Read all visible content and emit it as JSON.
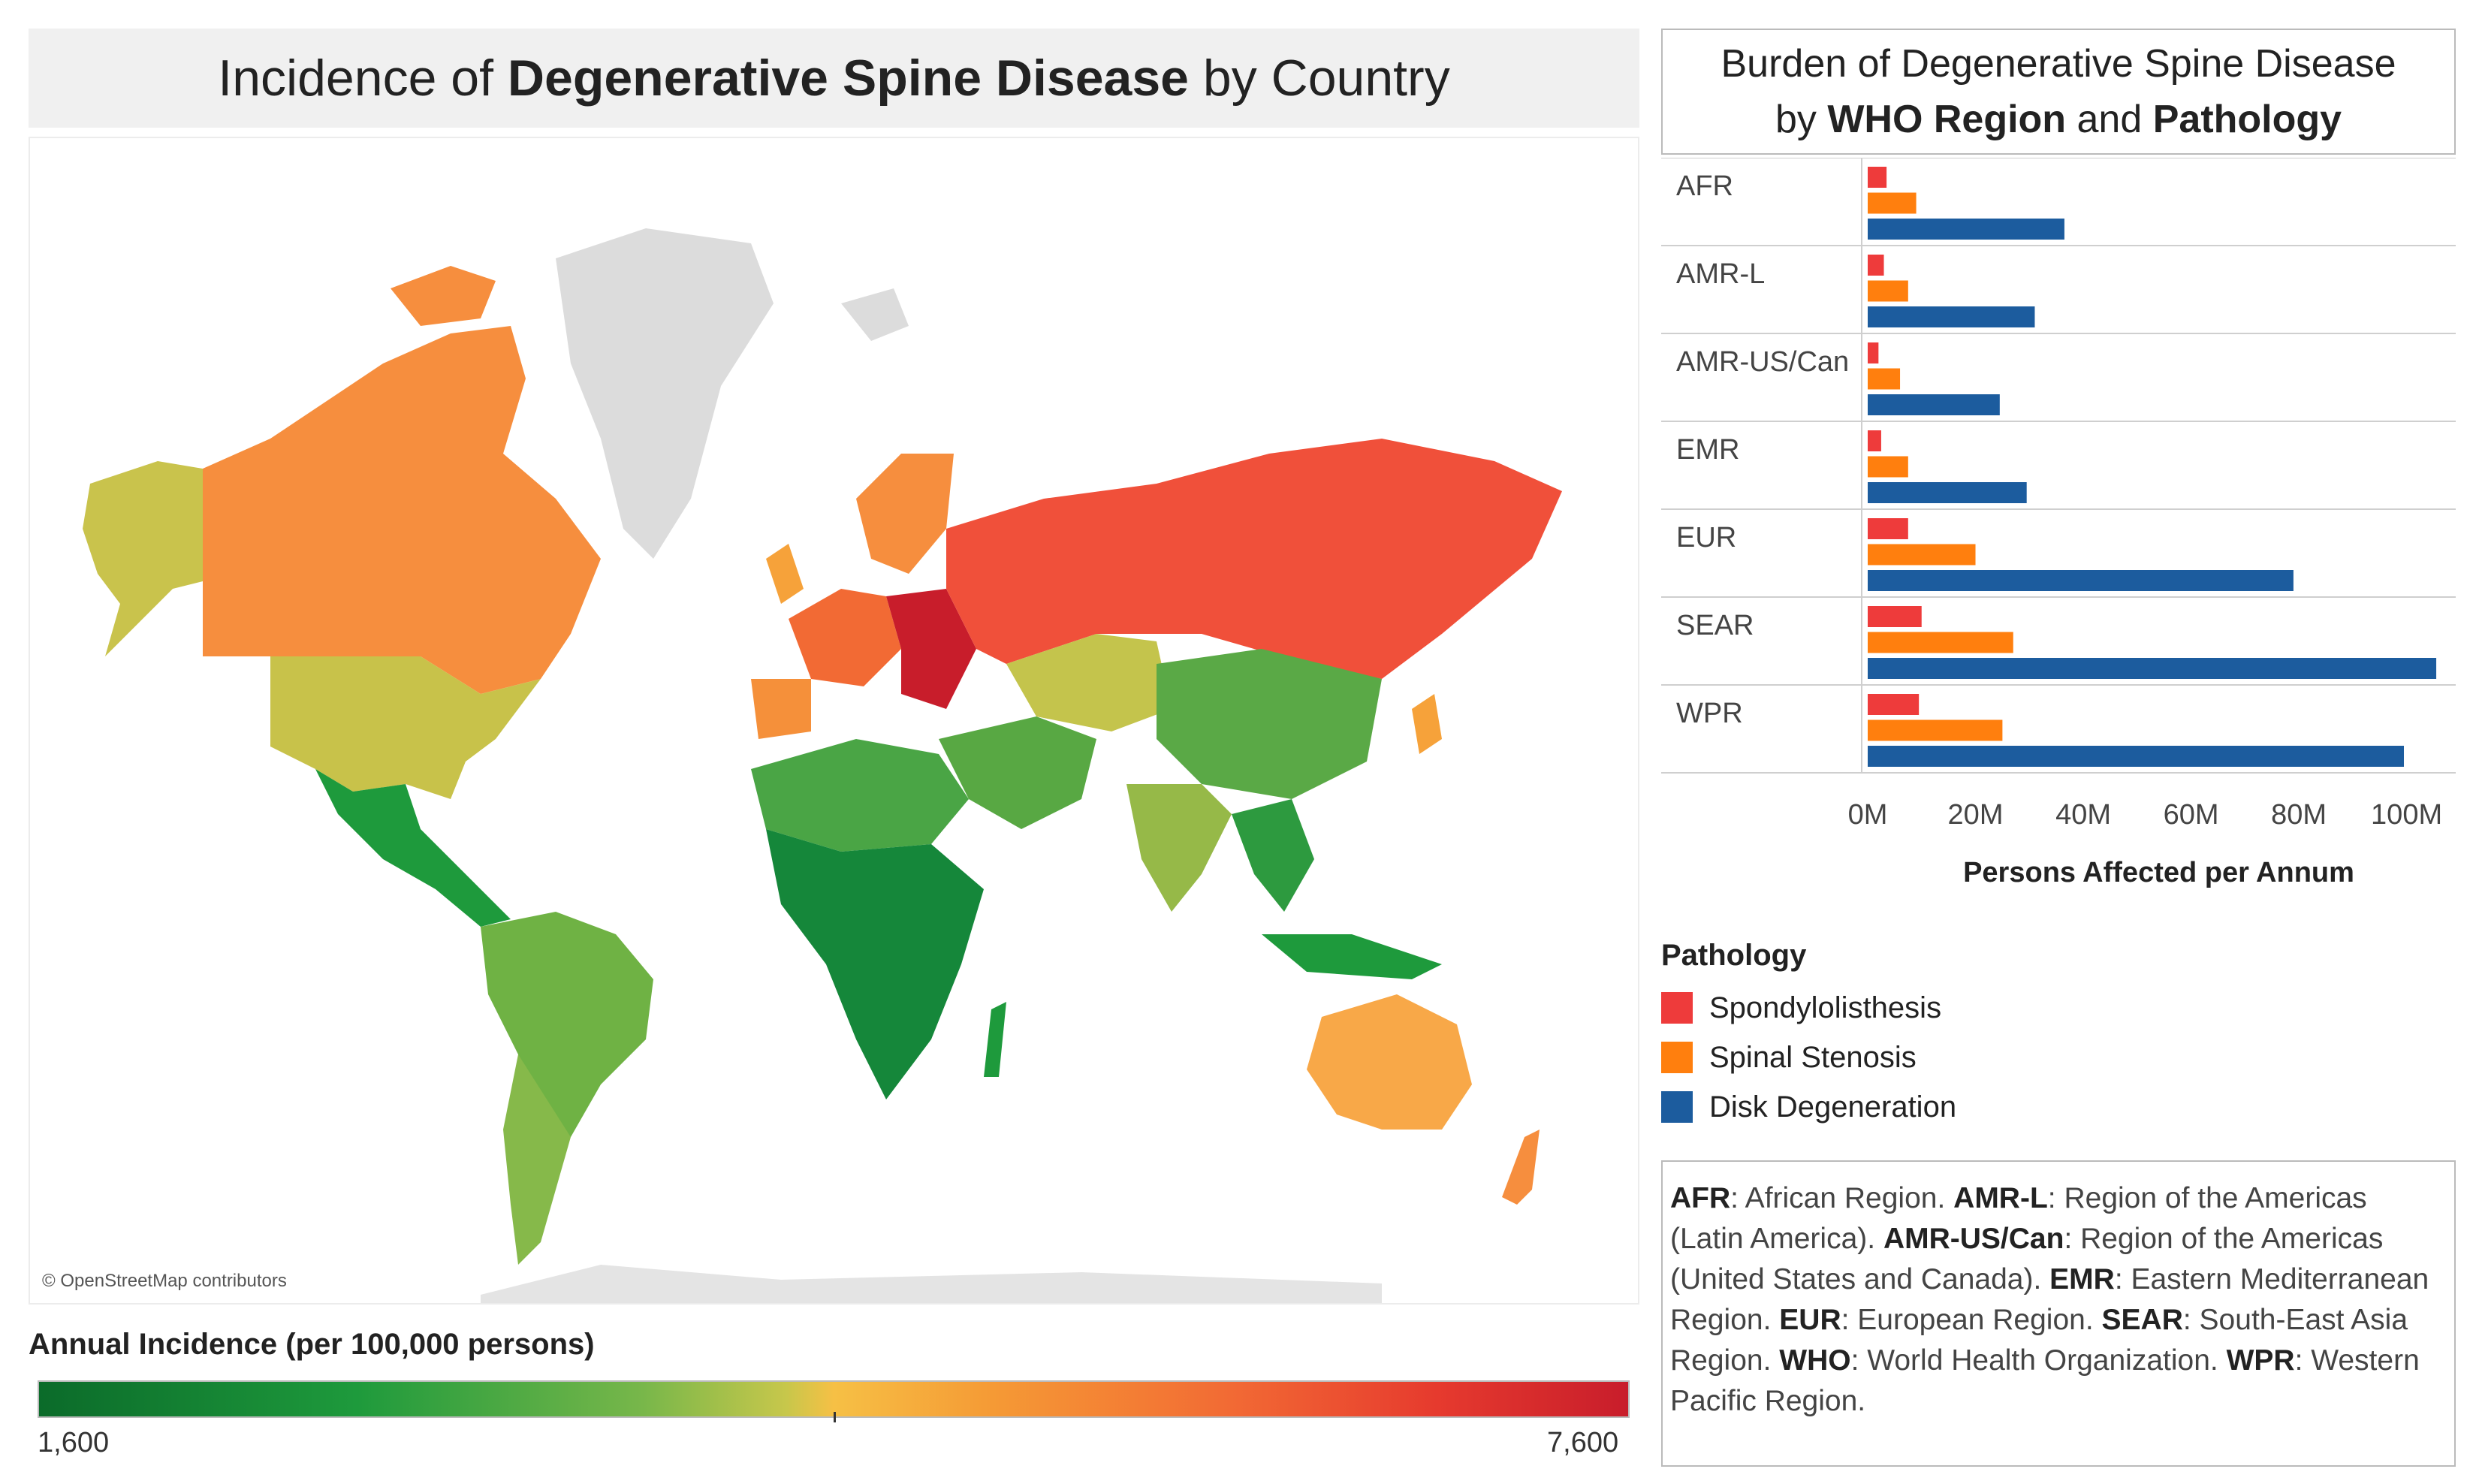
{
  "map_panel": {
    "title_pre": "Incidence of ",
    "title_bold": "Degenerative Spine Disease",
    "title_post": " by Country",
    "attribution": "© OpenStreetMap contributors",
    "legend_title": "Annual Incidence (per 100,000 persons)",
    "legend_min": "1,600",
    "legend_max": "7,600"
  },
  "bar_panel": {
    "title_line1": "Burden of Degenerative Spine Disease",
    "title_line2_by": "by ",
    "title_line2_bold1": "WHO Region",
    "title_line2_and": " and ",
    "title_line2_bold2": "Pathology"
  },
  "chart_data": [
    {
      "type": "bar",
      "orientation": "horizontal",
      "title": "Burden of Degenerative Spine Disease by WHO Region and Pathology",
      "xlabel": "Persons Affected per Annum",
      "xlim": [
        0,
        108
      ],
      "x_ticks": [
        "0M",
        "20M",
        "40M",
        "60M",
        "80M",
        "100M"
      ],
      "x_tick_values": [
        0,
        20,
        40,
        60,
        80,
        100
      ],
      "units": "millions",
      "categories": [
        "AFR",
        "AMR-L",
        "AMR-US/Can",
        "EMR",
        "EUR",
        "SEAR",
        "WPR"
      ],
      "series": [
        {
          "name": "Spondylolisthesis",
          "color": "#ee3b3b",
          "values": [
            3.5,
            3,
            2,
            2.5,
            7.5,
            10,
            9.5
          ]
        },
        {
          "name": "Spinal Stenosis",
          "color": "#ff7f0e",
          "values": [
            9,
            7.5,
            6,
            7.5,
            20,
            27,
            25
          ]
        },
        {
          "name": "Disk Degeneration",
          "color": "#1c5c9e",
          "values": [
            36.5,
            31,
            24.5,
            29.5,
            79,
            105.5,
            99.5
          ]
        }
      ],
      "legend_title": "Pathology"
    },
    {
      "type": "choropleth",
      "title": "Incidence of Degenerative Spine Disease by Country",
      "value_label": "Annual Incidence (per 100,000 persons)",
      "range": [
        1600,
        7600
      ],
      "colors": [
        "#0b6b2a",
        "#78b74a",
        "#f6c045",
        "#f26a34",
        "#c81d2b"
      ]
    }
  ],
  "abbreviations": [
    {
      "abbr": "AFR",
      "text": ": African Region. "
    },
    {
      "abbr": "AMR-L",
      "text": ": Region of the Americas (Latin America). "
    },
    {
      "abbr": "AMR-US/Can",
      "text": ": Region of the Americas (United States and Canada). "
    },
    {
      "abbr": "EMR",
      "text": ": Eastern Mediterranean Region. "
    },
    {
      "abbr": "EUR",
      "text": ": European Region. "
    },
    {
      "abbr": "SEAR",
      "text": ": South-East Asia Region. "
    },
    {
      "abbr": "WHO",
      "text": ": World Health Organization. "
    },
    {
      "abbr": "WPR",
      "text": ": Western Pacific Region."
    }
  ]
}
